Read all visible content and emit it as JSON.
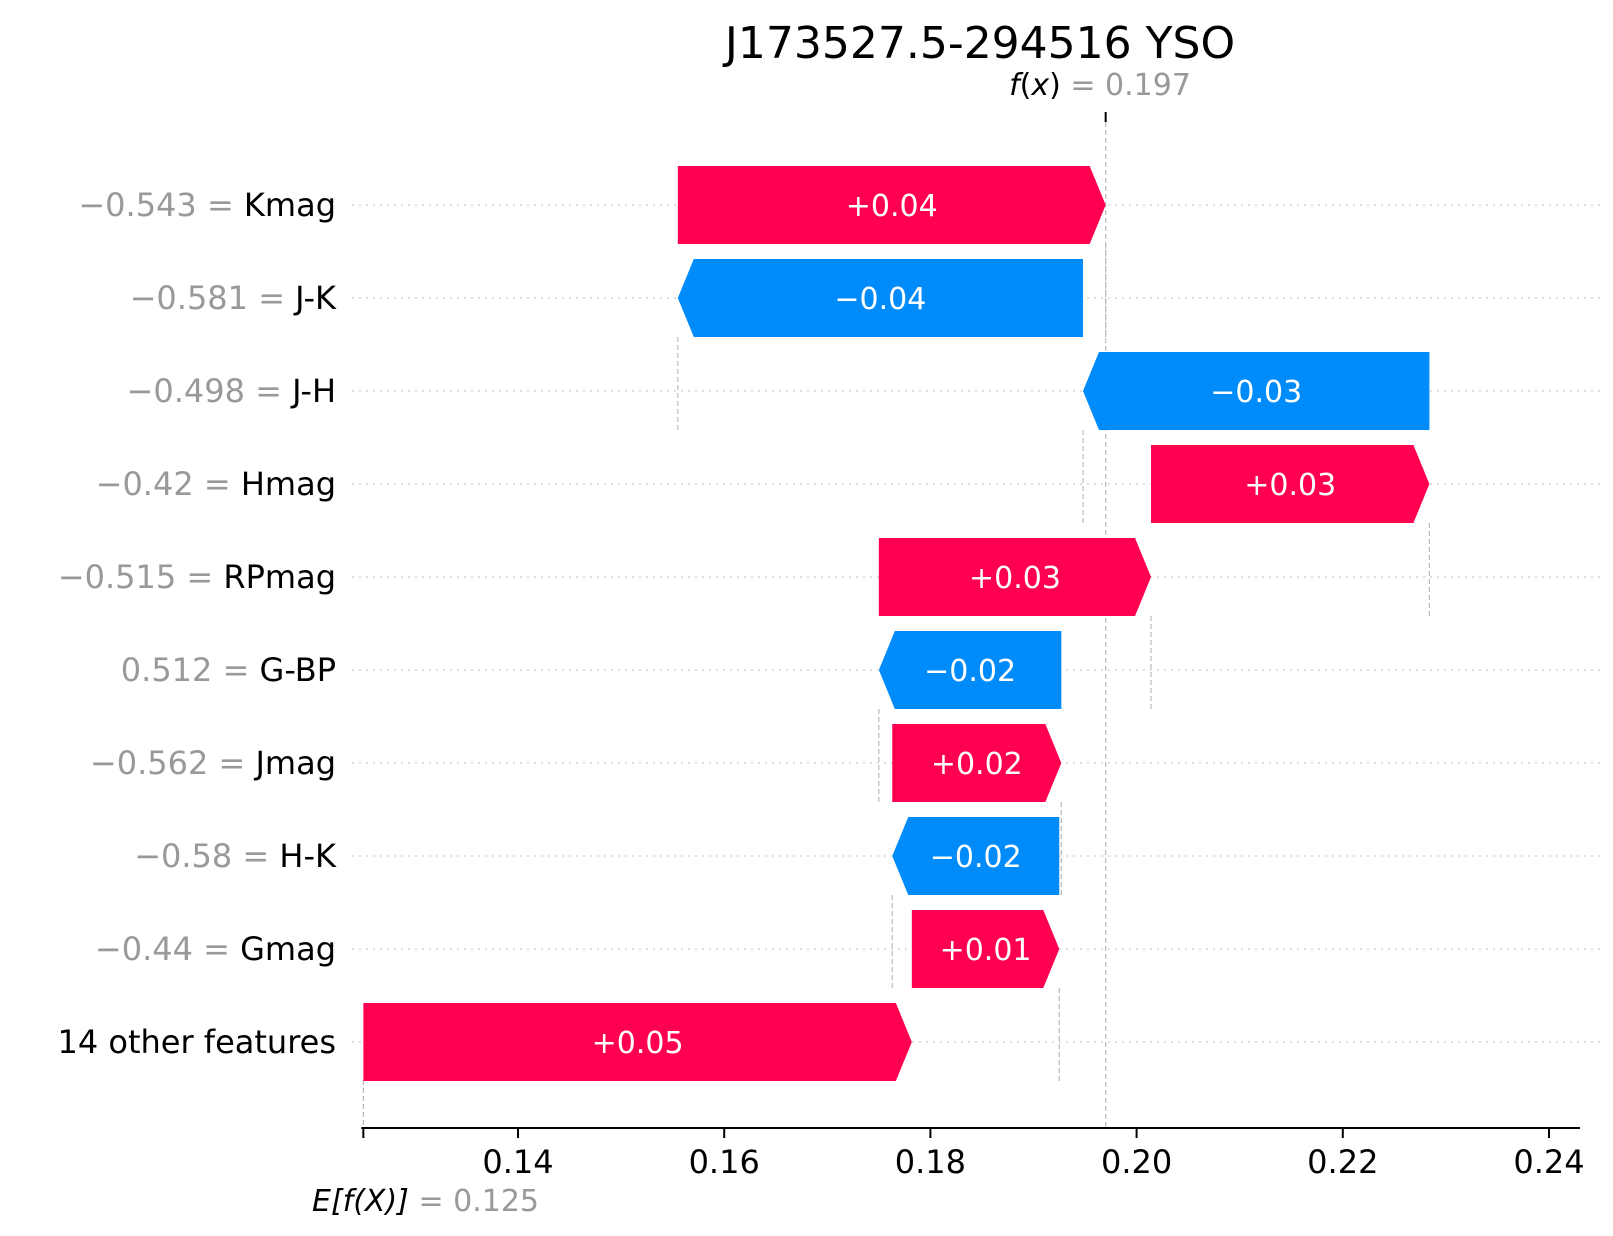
{
  "chart_data": {
    "type": "waterfall",
    "title": "J173527.5-294516 YSO",
    "fx": {
      "label_f": "f",
      "label_x": "x",
      "equals": "=",
      "value": "0.197",
      "value_num": 0.197
    },
    "base": {
      "label": "E[f(X)]",
      "equals": "=",
      "value": "0.125",
      "value_num": 0.125
    },
    "xlim": [
      0.125,
      0.243
    ],
    "xticks": [
      "0.14",
      "0.16",
      "0.18",
      "0.20",
      "0.22",
      "0.24"
    ],
    "xtick_values": [
      0.14,
      0.16,
      0.18,
      0.2,
      0.22,
      0.24
    ],
    "colors": {
      "positive": "#ff0051",
      "negative": "#008bfb",
      "feature_value": "#999999",
      "text": "#000000"
    },
    "features": [
      {
        "value": "−0.543",
        "name": "Kmag",
        "contribution_label": "+0.04",
        "start": 0.1555,
        "end": 0.197
      },
      {
        "value": "−0.581",
        "name": "J-K",
        "contribution_label": "−0.04",
        "start": 0.1948,
        "end": 0.1555
      },
      {
        "value": "−0.498",
        "name": "J-H",
        "contribution_label": "−0.03",
        "start": 0.2284,
        "end": 0.1948
      },
      {
        "value": "−0.42",
        "name": "Hmag",
        "contribution_label": "+0.03",
        "start": 0.2014,
        "end": 0.2284
      },
      {
        "value": "−0.515",
        "name": "RPmag",
        "contribution_label": "+0.03",
        "start": 0.175,
        "end": 0.2014
      },
      {
        "value": "0.512",
        "name": "G-BP",
        "contribution_label": "−0.02",
        "start": 0.1927,
        "end": 0.175
      },
      {
        "value": "−0.562",
        "name": "Jmag",
        "contribution_label": "+0.02",
        "start": 0.1763,
        "end": 0.1927
      },
      {
        "value": "−0.58",
        "name": "H-K",
        "contribution_label": "−0.02",
        "start": 0.1925,
        "end": 0.1763
      },
      {
        "value": "−0.44",
        "name": "Gmag",
        "contribution_label": "+0.01",
        "start": 0.1782,
        "end": 0.1925
      },
      {
        "value": "",
        "name": "14 other features",
        "contribution_label": "+0.05",
        "start": 0.125,
        "end": 0.1782
      }
    ]
  }
}
